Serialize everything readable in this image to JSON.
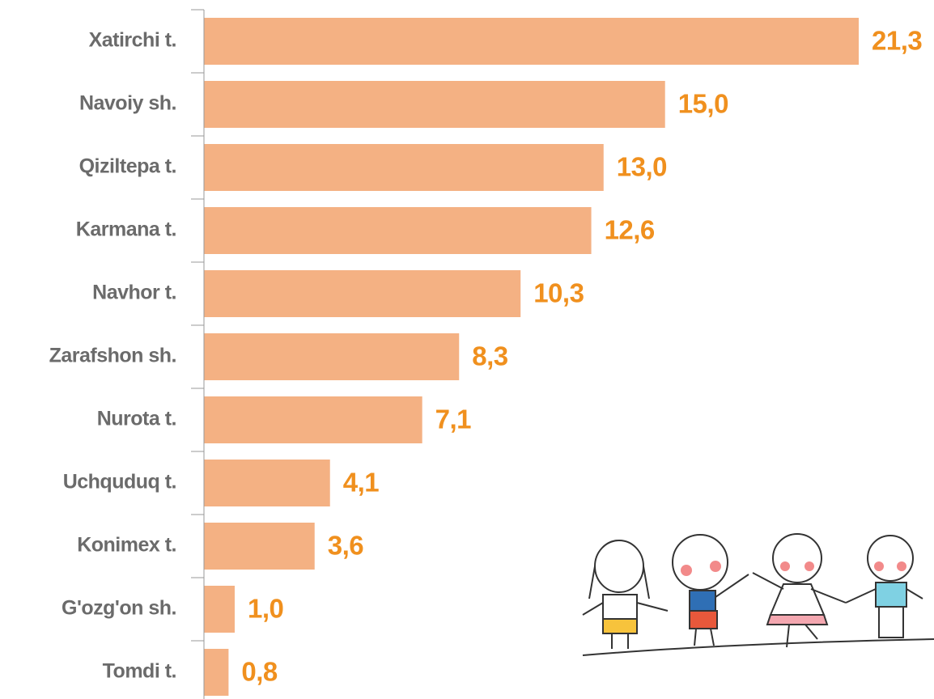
{
  "chart_data": {
    "type": "hbar",
    "categories": [
      "Xatirchi t.",
      "Navoiy sh.",
      "Qiziltepa t.",
      "Karmana t.",
      "Navhor t.",
      "Zarafshon sh.",
      "Nurota t.",
      "Uchquduq t.",
      "Konimex t.",
      "G'ozg'on sh.",
      "Tomdi t."
    ],
    "values": [
      21.3,
      15.0,
      13.0,
      12.6,
      10.3,
      8.3,
      7.1,
      4.1,
      3.6,
      1.0,
      0.8
    ],
    "value_labels": [
      "21,3",
      "15,0",
      "13,0",
      "12,6",
      "10,3",
      "8,3",
      "7,1",
      "4,1",
      "3,6",
      "1,0",
      "0,8"
    ],
    "color": "#f4b183",
    "label_color": "#f0901e"
  }
}
